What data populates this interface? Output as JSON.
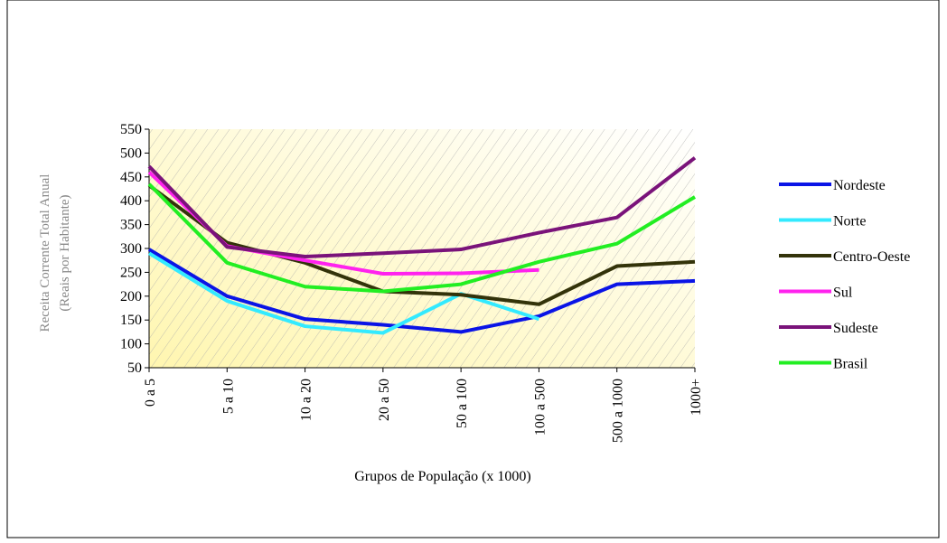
{
  "chart_data": {
    "type": "line",
    "y_label": [
      "Receita Corrente Total Anual",
      "(Reais por Habitante)"
    ],
    "x_label": "Grupos de População  (x 1000)",
    "categories": [
      "0 a 5",
      "5 a 10",
      "10 a 20",
      "20 a 50",
      "50 a 100",
      "100 a 500",
      "500 a 1000",
      "1000+"
    ],
    "series": [
      {
        "name": "Nordeste",
        "color": "#0a14e6",
        "values": [
          298,
          200,
          152,
          140,
          125,
          158,
          225,
          232
        ]
      },
      {
        "name": "Norte",
        "color": "#33eaff",
        "values": [
          290,
          190,
          137,
          123,
          205,
          152,
          null,
          null
        ]
      },
      {
        "name": "Centro-Oeste",
        "color": "#33330a",
        "values": [
          432,
          312,
          270,
          210,
          203,
          183,
          263,
          272
        ]
      },
      {
        "name": "Sul",
        "color": "#ff22ee",
        "values": [
          460,
          305,
          275,
          247,
          248,
          255,
          null,
          null
        ]
      },
      {
        "name": "Sudeste",
        "color": "#7a137a",
        "values": [
          472,
          303,
          283,
          290,
          298,
          333,
          365,
          490
        ]
      },
      {
        "name": "Brasil",
        "color": "#22ee22",
        "values": [
          435,
          270,
          220,
          210,
          225,
          272,
          310,
          408
        ]
      }
    ],
    "ylim": [
      50,
      550
    ],
    "yticks": [
      50,
      100,
      150,
      200,
      250,
      300,
      350,
      400,
      450,
      500,
      550
    ],
    "legend": "right"
  }
}
